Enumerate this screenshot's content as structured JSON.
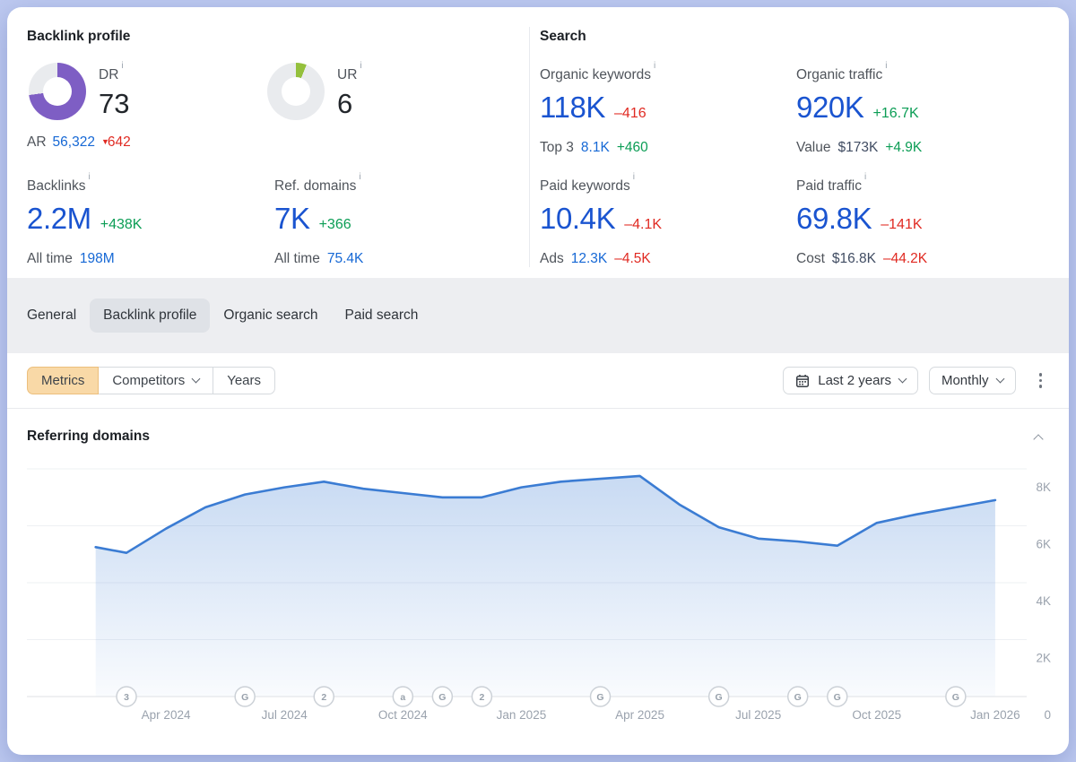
{
  "backlink_profile": {
    "title": "Backlink profile",
    "dr": {
      "label": "DR",
      "value": "73",
      "percent": 73,
      "color": "#7e5ec4"
    },
    "ur": {
      "label": "UR",
      "value": "6",
      "percent": 6,
      "color": "#94c03c"
    },
    "ar": {
      "label": "AR",
      "value": "56,322",
      "delta": "642"
    },
    "backlinks": {
      "label": "Backlinks",
      "value": "2.2M",
      "delta": "+438K",
      "alltime_label": "All time",
      "alltime_value": "198M"
    },
    "ref_domains": {
      "label": "Ref. domains",
      "value": "7K",
      "delta": "+366",
      "alltime_label": "All time",
      "alltime_value": "75.4K"
    }
  },
  "search": {
    "title": "Search",
    "organic_keywords": {
      "label": "Organic keywords",
      "value": "118K",
      "delta": "–416",
      "sub_label": "Top 3",
      "sub_value": "8.1K",
      "sub_delta": "+460"
    },
    "organic_traffic": {
      "label": "Organic traffic",
      "value": "920K",
      "delta": "+16.7K",
      "sub_label": "Value",
      "sub_value": "$173K",
      "sub_delta": "+4.9K"
    },
    "paid_keywords": {
      "label": "Paid keywords",
      "value": "10.4K",
      "delta": "–4.1K",
      "sub_label": "Ads",
      "sub_value": "12.3K",
      "sub_delta": "–4.5K"
    },
    "paid_traffic": {
      "label": "Paid traffic",
      "value": "69.8K",
      "delta": "–141K",
      "sub_label": "Cost",
      "sub_value": "$16.8K",
      "sub_delta": "–44.2K"
    }
  },
  "tabs": {
    "items": [
      "General",
      "Backlink profile",
      "Organic search",
      "Paid search"
    ],
    "active": "Backlink profile"
  },
  "toolbar": {
    "metrics": "Metrics",
    "competitors": "Competitors",
    "years": "Years",
    "date_range": "Last 2 years",
    "granularity": "Monthly"
  },
  "chart_data": {
    "type": "area",
    "title": "Referring domains",
    "x": [
      "Feb 2024",
      "Mar 2024",
      "Apr 2024",
      "May 2024",
      "Jun 2024",
      "Jul 2024",
      "Aug 2024",
      "Sep 2024",
      "Oct 2024",
      "Nov 2024",
      "Dec 2024",
      "Jan 2025",
      "Feb 2025",
      "Mar 2025",
      "Apr 2025",
      "May 2025",
      "Jun 2025",
      "Jul 2025",
      "Aug 2025",
      "Sep 2025",
      "Oct 2025",
      "Nov 2025",
      "Dec 2025",
      "Jan 2026"
    ],
    "values": [
      5250,
      5050,
      5900,
      6650,
      7100,
      7350,
      7550,
      7300,
      7150,
      7000,
      7000,
      7350,
      7550,
      7650,
      7750,
      6750,
      5950,
      5550,
      5450,
      5300,
      6100,
      6400,
      6650,
      6900
    ],
    "ylim": [
      0,
      8000
    ],
    "yticks": [
      {
        "v": 8000,
        "label": "8K"
      },
      {
        "v": 6000,
        "label": "6K"
      },
      {
        "v": 4000,
        "label": "4K"
      },
      {
        "v": 2000,
        "label": "2K"
      },
      {
        "v": 0,
        "label": "0"
      }
    ],
    "xticks": [
      {
        "i": 2,
        "label": "Apr 2024"
      },
      {
        "i": 5,
        "label": "Jul 2024"
      },
      {
        "i": 8,
        "label": "Oct 2024"
      },
      {
        "i": 11,
        "label": "Jan 2025"
      },
      {
        "i": 14,
        "label": "Apr 2025"
      },
      {
        "i": 17,
        "label": "Jul 2025"
      },
      {
        "i": 20,
        "label": "Oct 2025"
      },
      {
        "i": 23,
        "label": "Jan 2026"
      }
    ],
    "markers": [
      {
        "i": 1,
        "label": "3"
      },
      {
        "i": 4,
        "label": "G"
      },
      {
        "i": 6,
        "label": "2"
      },
      {
        "i": 8,
        "label": "a"
      },
      {
        "i": 9,
        "label": "G"
      },
      {
        "i": 10,
        "label": "2"
      },
      {
        "i": 13,
        "label": "G"
      },
      {
        "i": 16,
        "label": "G"
      },
      {
        "i": 18,
        "label": "G"
      },
      {
        "i": 19,
        "label": "G"
      },
      {
        "i": 22,
        "label": "G"
      }
    ],
    "line_color": "#3b7cd3",
    "fill_color": "#3b7cd3",
    "grid": true,
    "legend": false,
    "ylabel": "",
    "xlabel": ""
  }
}
